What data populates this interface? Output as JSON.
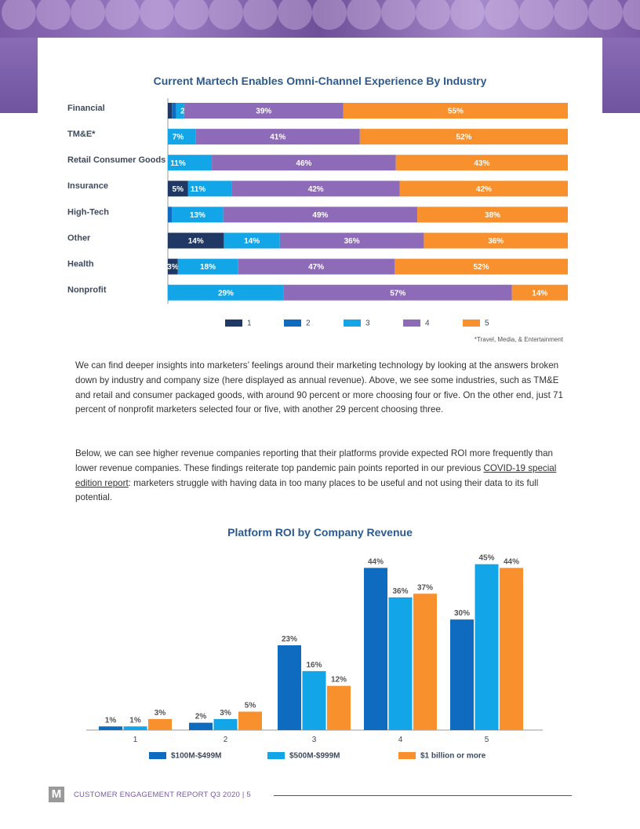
{
  "chart_data": [
    {
      "type": "bar",
      "orientation": "horizontal-stacked",
      "title": "Current Martech Enables Omni-Channel Experience By Industry",
      "categories": [
        "Financial",
        "TM&E*",
        "Retail Consumer Goods",
        "Insurance",
        "High-Tech",
        "Other",
        "Health",
        "Nonprofit"
      ],
      "series": [
        {
          "name": "1",
          "color": "#1f3864",
          "values": [
            1,
            0,
            0,
            5,
            0,
            14,
            3,
            0
          ]
        },
        {
          "name": "2",
          "color": "#0f6bbf",
          "values": [
            1,
            0,
            0,
            0,
            1,
            0,
            0,
            0
          ]
        },
        {
          "name": "3",
          "color": "#12a6e8",
          "values": [
            2,
            7,
            11,
            11,
            13,
            14,
            18,
            29
          ]
        },
        {
          "name": "4",
          "color": "#8e6bb8",
          "values": [
            39,
            41,
            46,
            42,
            49,
            36,
            47,
            57
          ]
        },
        {
          "name": "5",
          "color": "#f7902d",
          "values": [
            55,
            52,
            43,
            42,
            38,
            36,
            52,
            14
          ]
        }
      ],
      "labels": [
        [
          "",
          "",
          "2%",
          "39%",
          "55%"
        ],
        [
          "",
          "",
          "7%",
          "41%",
          "52%"
        ],
        [
          "",
          "",
          "11%",
          "46%",
          "43%"
        ],
        [
          "5%",
          "",
          "11%",
          "42%",
          "42%"
        ],
        [
          "",
          "",
          "13%",
          "49%",
          "38%"
        ],
        [
          "14%",
          "",
          "14%",
          "36%",
          "36%"
        ],
        [
          "3%",
          "",
          "18%",
          "47%",
          "52%"
        ],
        [
          "",
          "",
          "29%",
          "57%",
          "14%"
        ]
      ],
      "legend_position": "bottom",
      "footnote": "*Travel, Media, & Entertainment"
    },
    {
      "type": "bar",
      "title": "Platform ROI by Company Revenue",
      "categories": [
        "1",
        "2",
        "3",
        "4",
        "5"
      ],
      "series": [
        {
          "name": "$100M-$499M",
          "color": "#0f6bbf",
          "values": [
            1,
            2,
            23,
            44,
            30
          ]
        },
        {
          "name": "$500M-$999M",
          "color": "#12a6e8",
          "values": [
            1,
            3,
            16,
            36,
            45
          ]
        },
        {
          "name": "$1 billion or more",
          "color": "#f7902d",
          "values": [
            3,
            5,
            12,
            37,
            44
          ]
        }
      ],
      "ylim": [
        0,
        46
      ],
      "legend_position": "bottom"
    }
  ],
  "paragraphs": {
    "p1": "We can find deeper insights into marketers’ feelings around their marketing technology by looking at the answers broken down by industry and company size (here displayed as annual revenue). Above, we see some industries, such as TM&E and retail and consumer packaged goods, with around 90 percent or more choosing four or five. On the other end, just 71 percent of nonprofit marketers selected four or five, with another 29 percent choosing three.",
    "p2_before": "Below, we can see higher revenue companies reporting that their platforms provide expected ROI more frequently than lower revenue companies. These findings reiterate top pandemic pain points reported in our previous ",
    "p2_link": "COVID-19 special edition report",
    "p2_after": ": marketers struggle with having data in too many places to be useful and not using their data to its full potential."
  },
  "footer": {
    "logo": "M",
    "text": "CUSTOMER ENGAGEMENT REPORT Q3 2020  |  5"
  }
}
